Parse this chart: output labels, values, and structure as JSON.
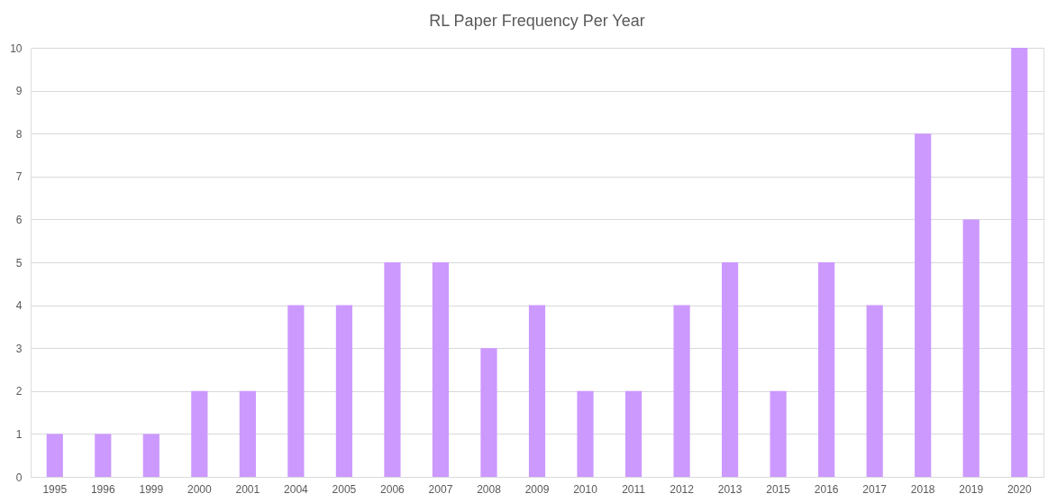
{
  "chart_data": {
    "type": "bar",
    "title": "RL Paper Frequency Per Year",
    "categories": [
      "1995",
      "1996",
      "1999",
      "2000",
      "2001",
      "2004",
      "2005",
      "2006",
      "2007",
      "2008",
      "2009",
      "2010",
      "2011",
      "2012",
      "2013",
      "2015",
      "2016",
      "2017",
      "2018",
      "2019",
      "2020"
    ],
    "values": [
      1,
      1,
      1,
      2,
      2,
      4,
      4,
      5,
      5,
      3,
      4,
      2,
      2,
      4,
      5,
      2,
      5,
      4,
      8,
      6,
      10
    ],
    "color": "#cc99ff",
    "ylim": [
      0,
      10
    ],
    "yticks": [
      0,
      1,
      2,
      3,
      4,
      5,
      6,
      7,
      8,
      9,
      10
    ],
    "grid": "y"
  }
}
